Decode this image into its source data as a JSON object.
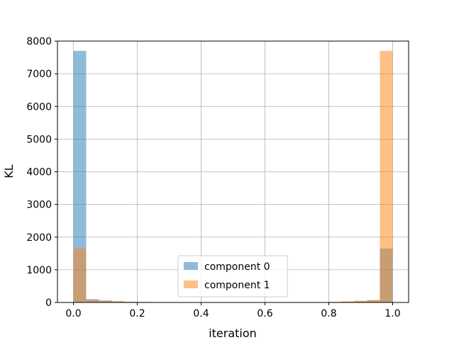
{
  "chart_data": {
    "type": "bar",
    "title": "",
    "xlabel": "iteration",
    "ylabel": "KL",
    "xlim": [
      -0.05,
      1.05
    ],
    "ylim": [
      0,
      8000
    ],
    "xticks": [
      0.0,
      0.2,
      0.4,
      0.6,
      0.8,
      1.0
    ],
    "xtick_labels": [
      "0.0",
      "0.2",
      "0.4",
      "0.6",
      "0.8",
      "1.0"
    ],
    "yticks": [
      0,
      1000,
      2000,
      3000,
      4000,
      5000,
      6000,
      7000,
      8000
    ],
    "ytick_labels": [
      "0",
      "1000",
      "2000",
      "3000",
      "4000",
      "5000",
      "6000",
      "7000",
      "8000"
    ],
    "grid": true,
    "legend_position": "lower-center",
    "bin_edges": [
      0.0,
      0.04,
      0.08,
      0.12,
      0.16,
      0.2,
      0.24,
      0.28,
      0.32,
      0.36,
      0.4,
      0.44,
      0.48,
      0.52,
      0.56,
      0.6,
      0.64,
      0.68,
      0.72,
      0.76,
      0.8,
      0.84,
      0.88,
      0.92,
      0.96,
      1.0
    ],
    "series": [
      {
        "name": "component 0",
        "color": "#1f77b4",
        "values": [
          7700,
          100,
          60,
          35,
          20,
          15,
          10,
          8,
          7,
          6,
          5,
          5,
          5,
          5,
          5,
          5,
          6,
          7,
          8,
          10,
          15,
          20,
          35,
          60,
          1650
        ]
      },
      {
        "name": "component 1",
        "color": "#ff7f0e",
        "values": [
          1650,
          80,
          55,
          35,
          20,
          15,
          10,
          8,
          7,
          6,
          5,
          5,
          5,
          5,
          5,
          5,
          6,
          7,
          8,
          10,
          15,
          35,
          55,
          80,
          7700
        ]
      }
    ]
  }
}
